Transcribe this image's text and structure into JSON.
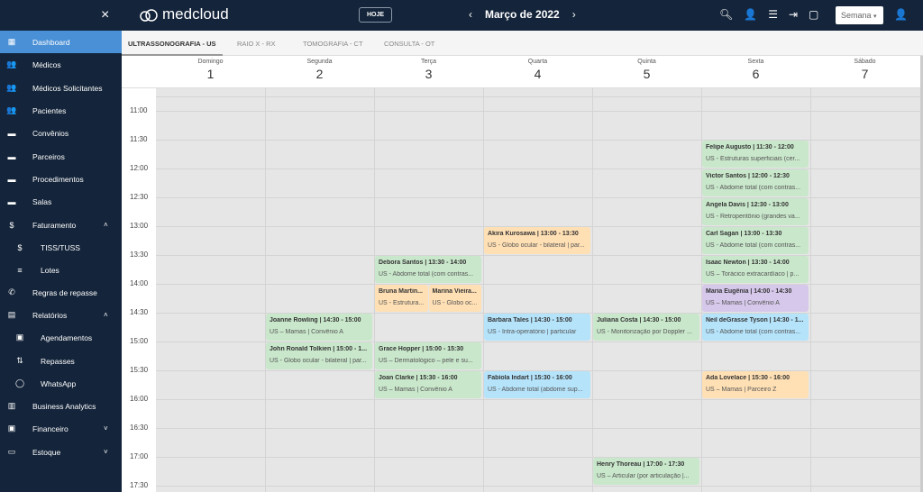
{
  "header": {
    "logo": "medcloud",
    "today": "HOJE",
    "month": "Março de 2022",
    "view": "Semana",
    "prev": "‹",
    "next": "›",
    "close": "×"
  },
  "sidebar": {
    "items": [
      {
        "label": "Dashboard",
        "icon": "dashboard-icon",
        "glyph": "▦",
        "active": true
      },
      {
        "label": "Médicos",
        "icon": "people-icon",
        "glyph": "👥"
      },
      {
        "label": "Médicos Solicitantes",
        "icon": "people-icon",
        "glyph": "👥"
      },
      {
        "label": "Pacientes",
        "icon": "people-icon",
        "glyph": "👥"
      },
      {
        "label": "Convênios",
        "icon": "folder-icon",
        "glyph": "▬"
      },
      {
        "label": "Parceiros",
        "icon": "folder-icon",
        "glyph": "▬"
      },
      {
        "label": "Procedimentos",
        "icon": "folder-icon",
        "glyph": "▬"
      },
      {
        "label": "Salas",
        "icon": "folder-icon",
        "glyph": "▬"
      },
      {
        "label": "Faturamento",
        "icon": "dollar-icon",
        "glyph": "$",
        "chevron": "˄"
      },
      {
        "label": "TISS/TUSS",
        "icon": "dollar-icon",
        "glyph": "$",
        "sub": true
      },
      {
        "label": "Lotes",
        "icon": "list-icon",
        "glyph": "≡",
        "sub": true
      },
      {
        "label": "Regras de repasse",
        "icon": "phone-icon",
        "glyph": "✆"
      },
      {
        "label": "Relatórios",
        "icon": "document-icon",
        "glyph": "▤",
        "chevron": "˄"
      },
      {
        "label": "Agendamentos",
        "icon": "calendar-icon",
        "glyph": "▣",
        "sub": true
      },
      {
        "label": "Repasses",
        "icon": "transfer-icon",
        "glyph": "⇅",
        "sub": true
      },
      {
        "label": "WhatsApp",
        "icon": "whatsapp-icon",
        "glyph": "◯",
        "sub": true
      },
      {
        "label": "Business Analytics",
        "icon": "analytics-icon",
        "glyph": "▥"
      },
      {
        "label": "Financeiro",
        "icon": "wallet-icon",
        "glyph": "▣",
        "chevron": "˅"
      },
      {
        "label": "Estoque",
        "icon": "inbox-icon",
        "glyph": "▭",
        "chevron": "˅"
      }
    ]
  },
  "tabs": [
    {
      "label": "ULTRASSONOGRAFIA - US",
      "active": true
    },
    {
      "label": "RAIO X - RX"
    },
    {
      "label": "TOMOGRAFIA - CT"
    },
    {
      "label": "CONSULTA - OT"
    }
  ],
  "days": [
    {
      "name": "Domingo",
      "date": "1"
    },
    {
      "name": "Segunda",
      "date": "2"
    },
    {
      "name": "Terça",
      "date": "3"
    },
    {
      "name": "Quarta",
      "date": "4"
    },
    {
      "name": "Quinta",
      "date": "5"
    },
    {
      "name": "Sexta",
      "date": "6"
    },
    {
      "name": "Sábado",
      "date": "7"
    }
  ],
  "times": [
    "11:00",
    "11:30",
    "12:00",
    "12:30",
    "13:00",
    "13:30",
    "14:00",
    "14:30",
    "15:00",
    "15:30",
    "16:00",
    "16:30",
    "17:00",
    "17:30"
  ],
  "colors": {
    "green": "#c9e7cb",
    "orange": "#ffe0b5",
    "blue": "#b5e3fa",
    "purple": "#d6c8ea"
  },
  "events": [
    {
      "day": 5,
      "start": "11:30",
      "end": "12:00",
      "title": "Felipe Augusto | 11:30 - 12:00",
      "detail": "US - Estruturas superficiais (cer...",
      "color": "green"
    },
    {
      "day": 5,
      "start": "12:00",
      "end": "12:30",
      "title": "Victor Santos | 12:00 - 12:30",
      "detail": "US - Abdome total (com contras...",
      "color": "green"
    },
    {
      "day": 5,
      "start": "12:30",
      "end": "13:00",
      "title": "Angela Davis | 12:30 - 13:00",
      "detail": "US - Retroperitônio (grandes va...",
      "color": "green"
    },
    {
      "day": 5,
      "start": "13:00",
      "end": "13:30",
      "title": "Carl Sagan | 13:00 - 13:30",
      "detail": "US - Abdome total (com contras...",
      "color": "green"
    },
    {
      "day": 5,
      "start": "13:30",
      "end": "14:00",
      "title": "Isaac Newton | 13:30 - 14:00",
      "detail": "US – Torácico extracardíaco | p...",
      "color": "green"
    },
    {
      "day": 5,
      "start": "14:00",
      "end": "14:30",
      "title": "Maria Eugênia | 14:00 - 14:30",
      "detail": "US – Mamas | Convênio A",
      "color": "purple"
    },
    {
      "day": 5,
      "start": "14:30",
      "end": "15:00",
      "title": "Neil deGrasse Tyson | 14:30 - 1...",
      "detail": "US - Abdome total (com contras...",
      "color": "blue"
    },
    {
      "day": 5,
      "start": "15:30",
      "end": "16:00",
      "title": "Ada Lovelace | 15:30 - 16:00",
      "detail": "US – Mamas | Parceiro Z",
      "color": "orange"
    },
    {
      "day": 3,
      "start": "13:00",
      "end": "13:30",
      "title": "Akira Kurosawa | 13:00 - 13:30",
      "detail": "US - Globo ocular - bilateral | par...",
      "color": "orange"
    },
    {
      "day": 3,
      "start": "14:30",
      "end": "15:00",
      "title": "Barbara Tales | 14:30 - 15:00",
      "detail": "US - Intra-operatório | particular",
      "color": "blue"
    },
    {
      "day": 3,
      "start": "15:30",
      "end": "16:00",
      "title": "Fabíola Indart | 15:30 - 16:00",
      "detail": "US - Abdome total (abdome sup...",
      "color": "blue"
    },
    {
      "day": 2,
      "start": "13:30",
      "end": "14:00",
      "title": "Debora Santos | 13:30 - 14:00",
      "detail": "US - Abdome total (com contras...",
      "color": "green"
    },
    {
      "day": 2,
      "start": "14:00",
      "end": "14:30",
      "title": "Bruna Martin...",
      "detail": "US - Estrutura...",
      "color": "orange"
    },
    {
      "day": 2,
      "start": "14:00",
      "end": "14:30",
      "title": "Marina Vieira...",
      "detail": "US - Globo oc...",
      "color": "orange"
    },
    {
      "day": 2,
      "start": "15:00",
      "end": "15:30",
      "title": "Grace Hopper | 15:00 - 15:30",
      "detail": "US – Dermatológico – pele e su...",
      "color": "green"
    },
    {
      "day": 2,
      "start": "15:30",
      "end": "16:00",
      "title": "Joan Clarke | 15:30 - 16:00",
      "detail": "US – Mamas | Convênio A",
      "color": "green"
    },
    {
      "day": 1,
      "start": "14:30",
      "end": "15:00",
      "title": "Joanne Rowling | 14:30 - 15:00",
      "detail": "US – Mamas | Convênio A",
      "color": "green"
    },
    {
      "day": 1,
      "start": "15:00",
      "end": "15:30",
      "title": "John Ronald Tolkien | 15:00 - 1...",
      "detail": "US - Globo ocular - bilateral | par...",
      "color": "green"
    },
    {
      "day": 4,
      "start": "14:30",
      "end": "15:00",
      "title": "Juliana Costa | 14:30 - 15:00",
      "detail": "US - Monitorização por Doppler ...",
      "color": "green"
    },
    {
      "day": 4,
      "start": "17:00",
      "end": "17:30",
      "title": "Henry Thoreau | 17:00 - 17:30",
      "detail": "US – Articular (por articulação |...",
      "color": "green"
    }
  ]
}
